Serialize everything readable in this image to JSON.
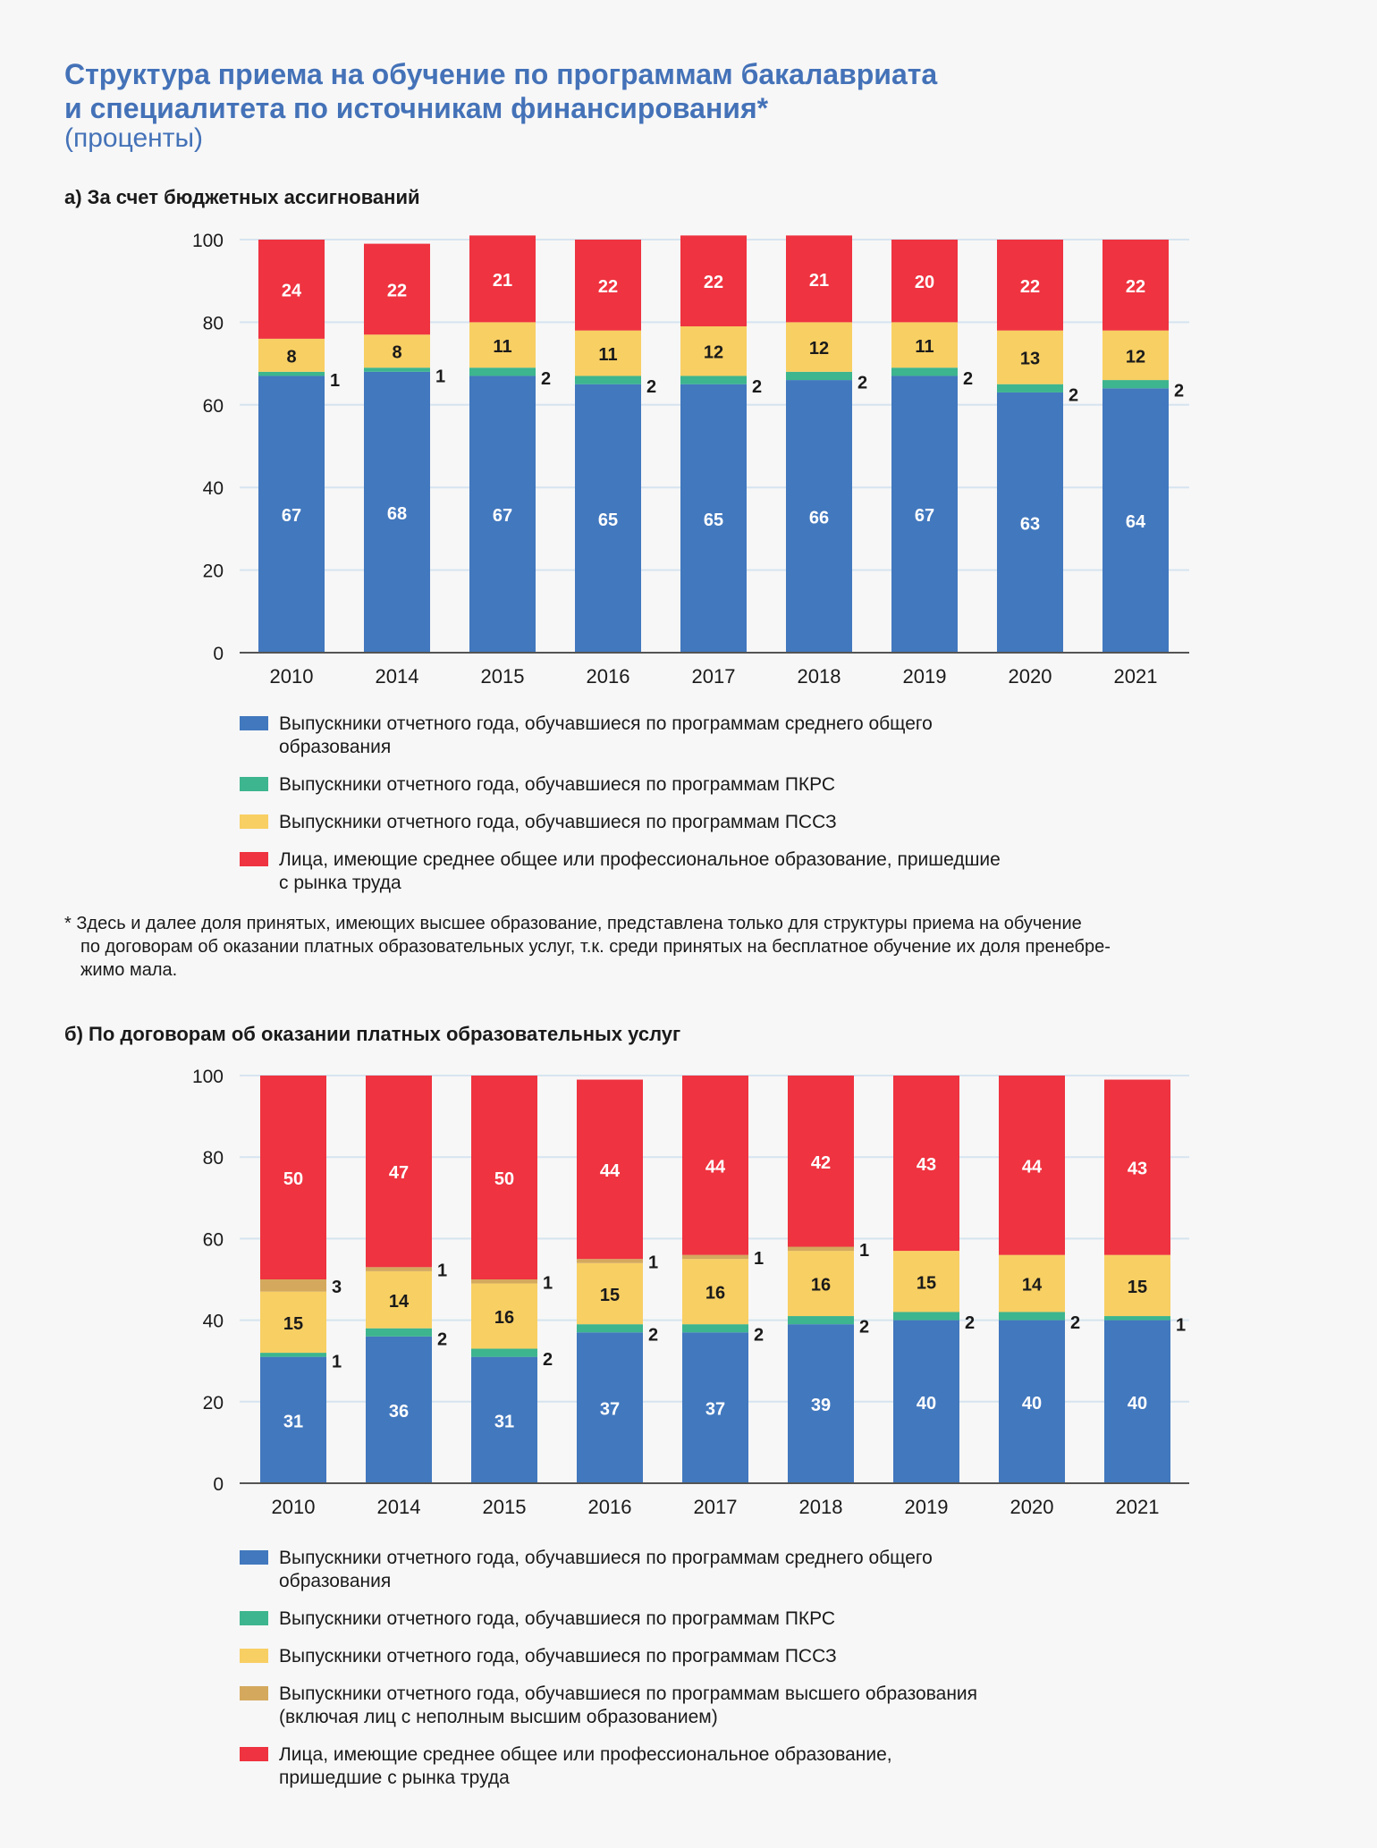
{
  "title_lines": [
    "Структура приема на обучение по программам бакалавриата",
    "и специалитета по источникам финансирования*"
  ],
  "subtitle": "(проценты)",
  "footnote": "* Здесь и далее доля принятых, имеющих высшее образование, представлена только для структуры приема на обучение\nпо договорам об оказании платных образовательных услуг, т.к. среди принятых на бесплатное обучение их доля пренебре-\nжимо мала.",
  "colors": {
    "blue": "#4278be",
    "green": "#3db58e",
    "yellow": "#f8cf63",
    "tan": "#d4a95e",
    "red": "#ef3340",
    "grid": "#d6e4f0",
    "axis": "#555555",
    "text": "#1a1a1a"
  },
  "chart_data": [
    {
      "type": "bar",
      "stacked": true,
      "title": "а) За счет бюджетных ассигнований",
      "categories": [
        "2010",
        "2014",
        "2015",
        "2016",
        "2017",
        "2018",
        "2019",
        "2020",
        "2021"
      ],
      "ylim": [
        0,
        100
      ],
      "yticks": [
        "0",
        "20",
        "40",
        "60",
        "80",
        "100"
      ],
      "grid": true,
      "legend_position": "bottom",
      "series": [
        {
          "name": "Выпускники отчетного года, обучавшиеся по программам среднего общего\nобразования",
          "color": "blue",
          "values": [
            67,
            68,
            67,
            65,
            65,
            66,
            67,
            63,
            64
          ]
        },
        {
          "name": "Выпускники отчетного года, обучавшиеся по программам ПКРС",
          "color": "green",
          "values": [
            1,
            1,
            2,
            2,
            2,
            2,
            2,
            2,
            2
          ]
        },
        {
          "name": "Выпускники отчетного года, обучавшиеся по программам ПССЗ",
          "color": "yellow",
          "values": [
            8,
            8,
            11,
            11,
            12,
            12,
            11,
            13,
            12
          ]
        },
        {
          "name": "Лица, имеющие среднее общее или профессиональное образование, пришедшие\nс рынка труда",
          "color": "red",
          "values": [
            24,
            22,
            21,
            22,
            22,
            21,
            20,
            22,
            22
          ]
        }
      ]
    },
    {
      "type": "bar",
      "stacked": true,
      "title": "б) По договорам об оказании платных образовательных услуг",
      "categories": [
        "2010",
        "2014",
        "2015",
        "2016",
        "2017",
        "2018",
        "2019",
        "2020",
        "2021"
      ],
      "ylim": [
        0,
        100
      ],
      "yticks": [
        "0",
        "20",
        "40",
        "60",
        "80",
        "100"
      ],
      "grid": true,
      "legend_position": "bottom",
      "series": [
        {
          "name": "Выпускники отчетного года, обучавшиеся по программам среднего общего\nобразования",
          "color": "blue",
          "values": [
            31,
            36,
            31,
            37,
            37,
            39,
            40,
            40,
            40
          ]
        },
        {
          "name": "Выпускники отчетного года, обучавшиеся по программам ПКРС",
          "color": "green",
          "values": [
            1,
            2,
            2,
            2,
            2,
            2,
            2,
            2,
            1
          ]
        },
        {
          "name": "Выпускники отчетного года, обучавшиеся по программам ПССЗ",
          "color": "yellow",
          "values": [
            15,
            14,
            16,
            15,
            16,
            16,
            15,
            14,
            15
          ]
        },
        {
          "name": "Выпускники отчетного года, обучавшиеся по программам высшего образования\n(включая лиц с неполным высшим образованием)",
          "color": "tan",
          "values": [
            3,
            1,
            1,
            1,
            1,
            1,
            0,
            0,
            0
          ]
        },
        {
          "name": "Лица, имеющие среднее общее или профессиональное образование,\nпришедшие с рынка труда",
          "color": "red",
          "values": [
            50,
            47,
            50,
            44,
            44,
            42,
            43,
            44,
            43
          ]
        }
      ]
    }
  ]
}
